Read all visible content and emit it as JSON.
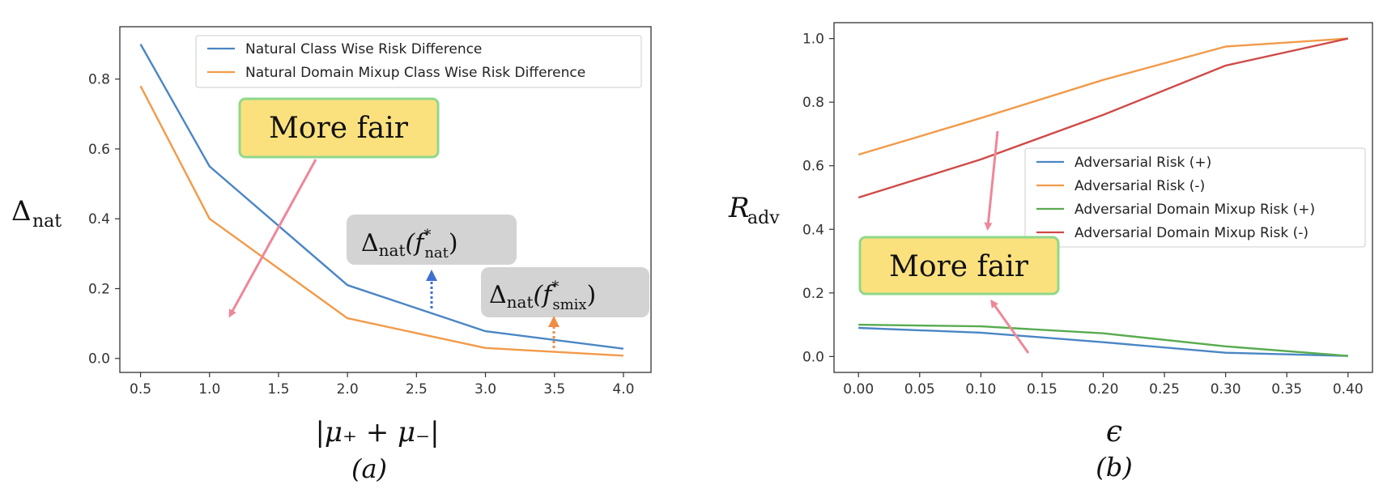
{
  "chart_data": [
    {
      "type": "line",
      "panel_label": "(a)",
      "xlabel": "|μ₊ + μ₋|",
      "ylabel": "Δ",
      "ylabel_sub": "nat",
      "x": [
        0.5,
        1.0,
        2.0,
        3.0,
        4.0
      ],
      "xticks": [
        "0.5",
        "1.0",
        "1.5",
        "2.0",
        "2.5",
        "3.0",
        "3.5",
        "4.0"
      ],
      "xtick_values": [
        0.5,
        1.0,
        1.5,
        2.0,
        2.5,
        3.0,
        3.5,
        4.0
      ],
      "yticks": [
        "0.0",
        "0.2",
        "0.4",
        "0.6",
        "0.8"
      ],
      "ytick_values": [
        0.0,
        0.2,
        0.4,
        0.6,
        0.8
      ],
      "xlim": [
        0.35,
        4.2
      ],
      "ylim": [
        -0.04,
        0.95
      ],
      "legend_position": "top-right",
      "series": [
        {
          "name": "Natural Class Wise Risk Difference",
          "color": "#4a86c5",
          "values": [
            0.9,
            0.55,
            0.21,
            0.078,
            0.028
          ]
        },
        {
          "name": "Natural Domain Mixup Class Wise Risk Difference",
          "color": "#f29a49",
          "values": [
            0.78,
            0.4,
            0.115,
            0.03,
            0.008
          ]
        }
      ],
      "annotations": {
        "fair_box": "More fair",
        "label1_main": "Δ",
        "label1_sub": "nat",
        "label1_open": "(f",
        "label1_sup": "*",
        "label1_fsub": "nat",
        "label1_close": ")",
        "label2_main": "Δ",
        "label2_sub": "nat",
        "label2_open": "(f",
        "label2_sup": "*",
        "label2_fsub": "smix",
        "label2_close": ")",
        "box_fill": "#fbe17e",
        "box_border": "#8fd88a",
        "label_fill": "#d3d3d3",
        "arrow_color": "#ee8798",
        "dotted_blue": "#3f6fd0",
        "dotted_orange": "#ef8c45"
      }
    },
    {
      "type": "line",
      "panel_label": "(b)",
      "xlabel": "ϵ",
      "ylabel": "R",
      "ylabel_sub": "adv",
      "x": [
        0.0,
        0.1,
        0.2,
        0.3,
        0.4
      ],
      "xticks": [
        "0.00",
        "0.05",
        "0.10",
        "0.15",
        "0.20",
        "0.25",
        "0.30",
        "0.35",
        "0.40"
      ],
      "xtick_values": [
        0.0,
        0.05,
        0.1,
        0.15,
        0.2,
        0.25,
        0.3,
        0.35,
        0.4
      ],
      "yticks": [
        "0.0",
        "0.2",
        "0.4",
        "0.6",
        "0.8",
        "1.0"
      ],
      "ytick_values": [
        0.0,
        0.2,
        0.4,
        0.6,
        0.8,
        1.0
      ],
      "xlim": [
        -0.02,
        0.42
      ],
      "ylim": [
        -0.05,
        1.05
      ],
      "legend_position": "center-right",
      "series": [
        {
          "name": "Adversarial Risk (+)",
          "color": "#4a86c5",
          "values": [
            0.09,
            0.075,
            0.045,
            0.012,
            0.002
          ]
        },
        {
          "name": "Adversarial Risk (-)",
          "color": "#f29a49",
          "values": [
            0.635,
            0.75,
            0.87,
            0.975,
            1.0
          ]
        },
        {
          "name": "Adversarial Domain Mixup Risk (+)",
          "color": "#58ab4f",
          "values": [
            0.1,
            0.095,
            0.073,
            0.032,
            0.002
          ]
        },
        {
          "name": "Adversarial Domain Mixup Risk (-)",
          "color": "#cf4a47",
          "values": [
            0.5,
            0.62,
            0.76,
            0.915,
            1.0
          ]
        }
      ],
      "annotations": {
        "fair_box": "More fair",
        "box_fill": "#fbe17e",
        "box_border": "#8fd88a",
        "arrow_color": "#ee8798"
      }
    }
  ]
}
